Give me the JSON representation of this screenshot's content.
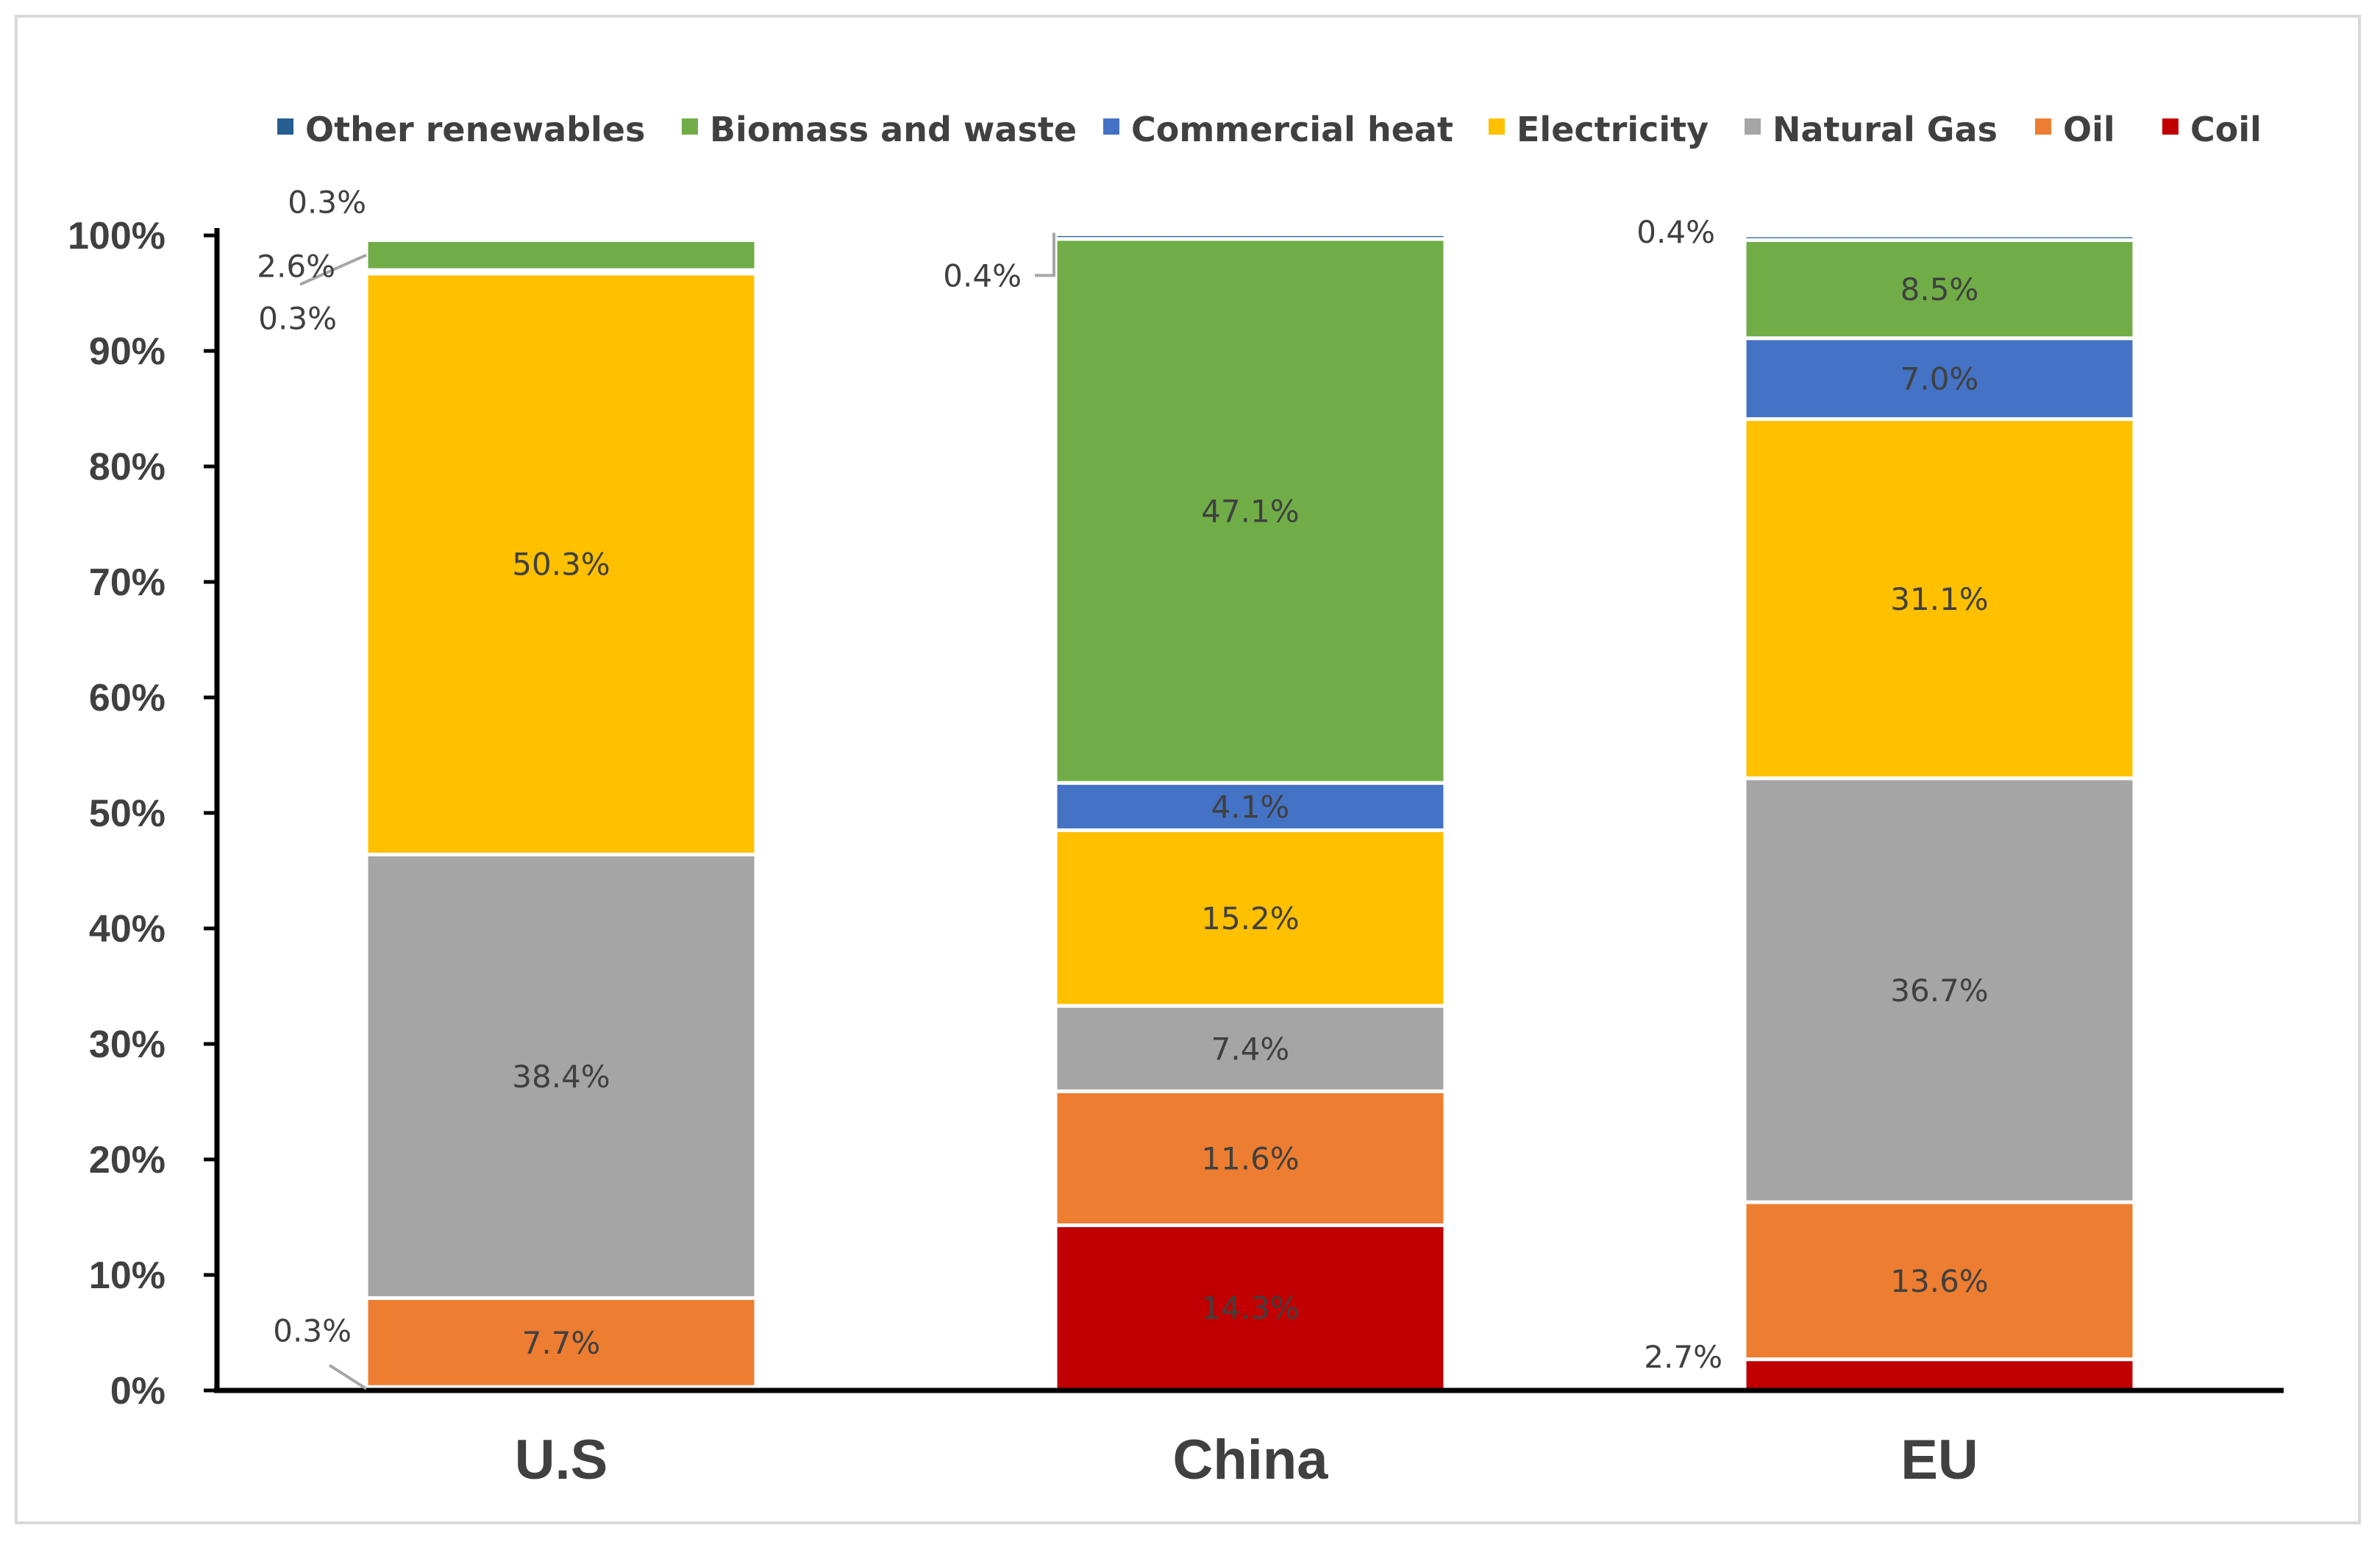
{
  "chart_data": {
    "type": "bar",
    "stacked": true,
    "title": "",
    "xlabel": "",
    "ylabel": "",
    "ylim": [
      0,
      100
    ],
    "yticks": [
      "0%",
      "10%",
      "20%",
      "30%",
      "40%",
      "50%",
      "60%",
      "70%",
      "80%",
      "90%",
      "100%"
    ],
    "legend_position": "top",
    "categories": [
      "U.S",
      "China",
      "EU"
    ],
    "legend_order": [
      "Other renewables",
      "Biomass and waste",
      "Commercial heat",
      "Electricity",
      "Natural Gas",
      "Oil",
      "Coil"
    ],
    "series": [
      {
        "name": "Coil",
        "color": "#c00000",
        "values": [
          0.3,
          14.3,
          2.7
        ],
        "labels": [
          "0.3%",
          "14.3%",
          "2.7%"
        ]
      },
      {
        "name": "Oil",
        "color": "#ed7d31",
        "values": [
          7.7,
          11.6,
          13.6
        ],
        "labels": [
          "7.7%",
          "11.6%",
          "13.6%"
        ]
      },
      {
        "name": "Natural Gas",
        "color": "#a5a5a5",
        "values": [
          38.4,
          7.4,
          36.7
        ],
        "labels": [
          "38.4%",
          "7.4%",
          "36.7%"
        ]
      },
      {
        "name": "Electricity",
        "color": "#ffc000",
        "values": [
          50.3,
          15.2,
          31.1
        ],
        "labels": [
          "50.3%",
          "15.2%",
          "31.1%"
        ]
      },
      {
        "name": "Commercial heat",
        "color": "#4472c4",
        "values": [
          0.3,
          4.1,
          7.0
        ],
        "labels": [
          "0.3%",
          "4.1%",
          "7.0%"
        ]
      },
      {
        "name": "Biomass and waste",
        "color": "#70ad47",
        "values": [
          2.6,
          47.1,
          8.5
        ],
        "labels": [
          "2.6%",
          "47.1%",
          "8.5%"
        ]
      },
      {
        "name": "Other renewables",
        "color": "#255e91",
        "values": [
          0.3,
          0.4,
          0.4
        ],
        "labels": [
          "0.3%",
          "0.4%",
          "0.4%"
        ]
      }
    ]
  }
}
